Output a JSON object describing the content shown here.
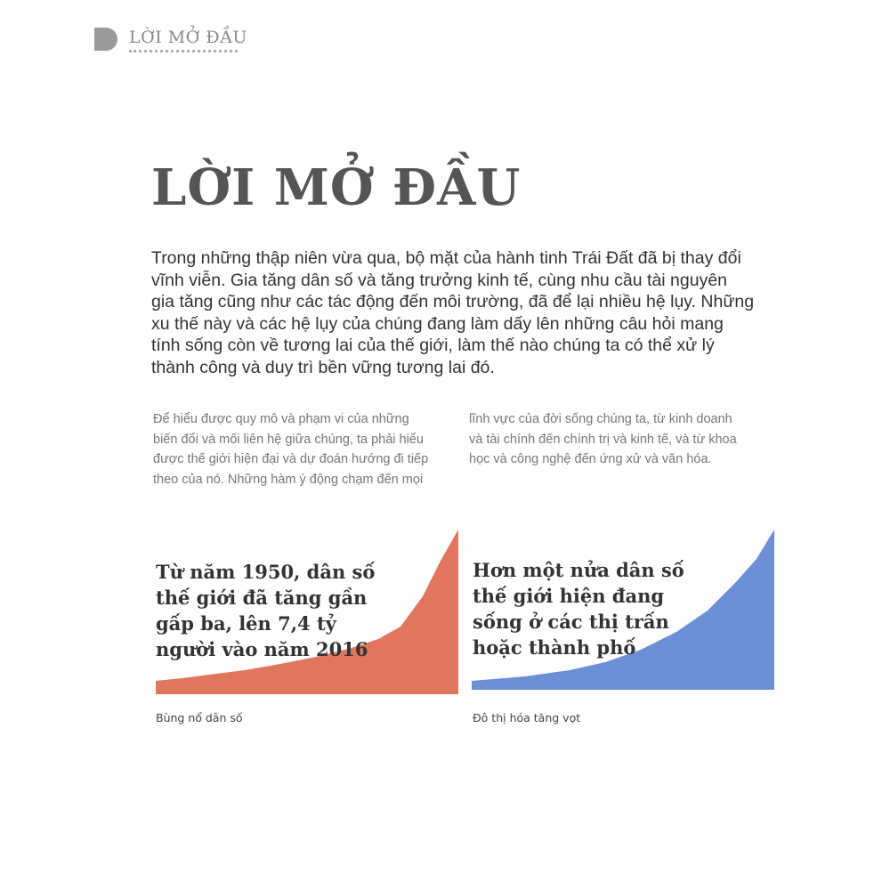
{
  "header": {
    "running_title": "LỜI MỞ ĐẦU"
  },
  "title": "LỜI MỞ ĐẦU",
  "lead_lines": [
    "Trong những thập niên vừa qua, bộ mặt của hành tinh Trái Đất đã bị thay đổi",
    "vĩnh viễn. Gia tăng dân số và tăng trưởng kinh tế, cùng nhu cầu tài nguyên",
    "gia tăng cũng như các tác động đến môi trường, đã để lại nhiều hệ lụy. Những",
    "xu thế này và các hệ lụy của chúng đang làm dấy lên những câu hỏi mang",
    "tính sống còn về tương lai của thế giới, làm thế nào chúng ta có thể xử lý",
    "thành công và duy trì bền vững tương lai đó."
  ],
  "col1_lines": [
    "Để hiểu được quy mô và phạm vi của những",
    "biến đổi và mối liên hệ giữa chúng, ta phải hiểu",
    "được thế giới hiện đại và dự đoán hướng đi tiếp",
    "theo của nó. Những hàm ý động chạm đến mọi"
  ],
  "col2_lines": [
    "lĩnh vực của đời sống chúng ta, từ kinh doanh",
    "và tài chính đến chính trị và kinh tế, và từ khoa",
    "học và công nghệ đến ứng xử và văn hóa."
  ],
  "graphics": [
    {
      "headline_lines": [
        "Từ năm 1950, dân số",
        "thế giới đã tăng gần",
        "gấp ba, lên 7,4 tỷ",
        "người vào năm 2016"
      ],
      "caption": "Bùng nổ dân số",
      "color": "#e0765e"
    },
    {
      "headline_lines": [
        "Hơn một nửa dân số",
        "thế giới hiện đang",
        "sống ở các thị trấn",
        "hoặc thành phố"
      ],
      "caption": "Đô thị hóa tăng vọt",
      "color": "#6c8fd6"
    }
  ]
}
